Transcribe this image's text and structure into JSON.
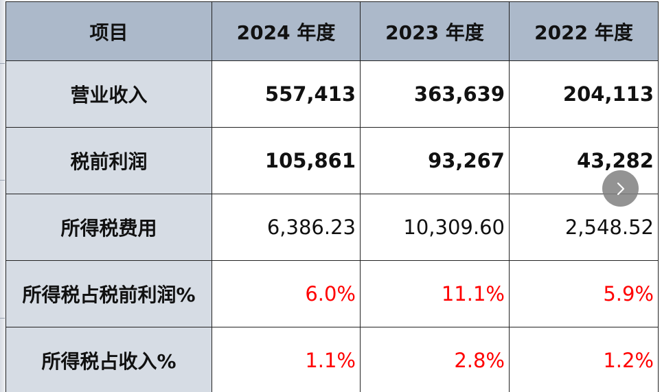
{
  "table": {
    "headers": [
      "项目",
      "2024 年度",
      "2023 年度",
      "2022 年度"
    ],
    "rows": [
      {
        "label": "营业收入",
        "values": [
          "557,413",
          "363,639",
          "204,113"
        ],
        "style": "bold"
      },
      {
        "label": "税前利润",
        "values": [
          "105,861",
          "93,267",
          "43,282"
        ],
        "style": "bold"
      },
      {
        "label": "所得税费用",
        "values": [
          "6,386.23",
          "10,309.60",
          "2,548.52"
        ],
        "style": "normal"
      },
      {
        "label": "所得税占税前利润%",
        "values": [
          "6.0%",
          "11.1%",
          "5.9%"
        ],
        "style": "red"
      },
      {
        "label": "所得税占收入%",
        "values": [
          "1.1%",
          "2.8%",
          "1.2%"
        ],
        "style": "red"
      }
    ]
  },
  "nav": {
    "next_icon": "chevron-right-icon"
  },
  "colors": {
    "header_bg": "#acb9ca",
    "label_bg": "#d6dce4",
    "highlight_text": "#ff0000"
  }
}
